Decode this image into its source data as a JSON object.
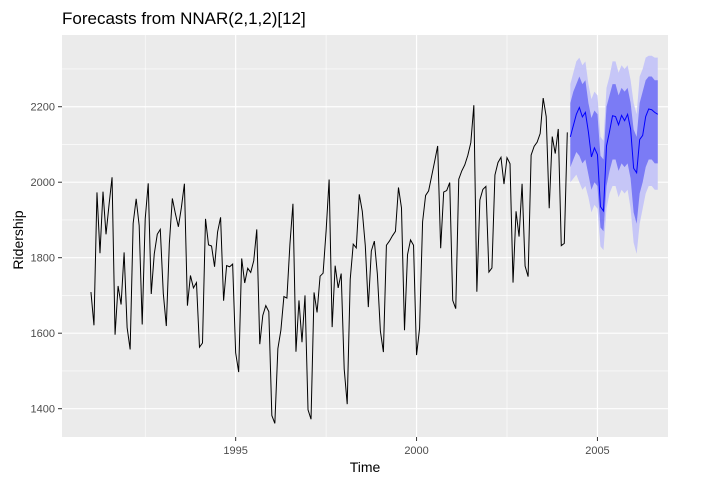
{
  "chart_data": {
    "type": "line",
    "title": "Forecasts from NNAR(2,1,2)[12]",
    "xlabel": "Time",
    "ylabel": "Ridership",
    "xlim": [
      1990.2,
      2006.95
    ],
    "ylim": [
      1325,
      2390
    ],
    "x_ticks": [
      1995,
      2000,
      2005
    ],
    "x_tick_labels": [
      "1995",
      "2000",
      "2005"
    ],
    "y_ticks": [
      1400,
      1600,
      1800,
      2000,
      2200
    ],
    "y_tick_labels": [
      "1400",
      "1600",
      "1800",
      "2000",
      "2200"
    ],
    "grid": true,
    "legend": "none",
    "colors": {
      "panel": "#ebebeb",
      "grid": "#ffffff",
      "history": "#000000",
      "forecast": "#0000ff",
      "pi80": "#7b7bf5",
      "pi95": "#c6c6f7"
    },
    "history": {
      "start": [
        1991,
        1
      ],
      "frequency": 12,
      "values": [
        1709,
        1621,
        1973,
        1812,
        1975,
        1862,
        1940,
        2013,
        1596,
        1725,
        1676,
        1814,
        1615,
        1557,
        1891,
        1956,
        1885,
        1623,
        1903,
        1997,
        1704,
        1810,
        1862,
        1875,
        1705,
        1619,
        1837,
        1957,
        1917,
        1882,
        1933,
        1996,
        1673,
        1753,
        1720,
        1734,
        1563,
        1574,
        1903,
        1834,
        1831,
        1776,
        1868,
        1907,
        1686,
        1779,
        1776,
        1783,
        1548,
        1497,
        1798,
        1733,
        1772,
        1761,
        1792,
        1875,
        1571,
        1647,
        1673,
        1657,
        1382,
        1361,
        1559,
        1608,
        1697,
        1693,
        1836,
        1943,
        1551,
        1687,
        1576,
        1700,
        1397,
        1372,
        1708,
        1655,
        1751,
        1759,
        1871,
        2007,
        1616,
        1779,
        1720,
        1758,
        1505,
        1412,
        1743,
        1836,
        1826,
        1968,
        1923,
        1832,
        1669,
        1818,
        1844,
        1757,
        1606,
        1550,
        1833,
        1844,
        1858,
        1870,
        1986,
        1932,
        1608,
        1808,
        1847,
        1833,
        1542,
        1613,
        1895,
        1965,
        1977,
        2016,
        2055,
        2096,
        1825,
        1974,
        1978,
        1999,
        1687,
        1665,
        2008,
        2030,
        2046,
        2071,
        2105,
        2204,
        1710,
        1953,
        1981,
        1989,
        1762,
        1773,
        2019,
        2052,
        2066,
        1995,
        2065,
        2049,
        1734,
        1923,
        1856,
        1996,
        1778,
        1750,
        2072,
        2095,
        2106,
        2129,
        2223,
        2174,
        1931,
        2121,
        2076,
        2141,
        1832,
        1838,
        2132
      ]
    },
    "forecast": {
      "start": [
        2004,
        4
      ],
      "frequency": 12,
      "mean": [
        2120,
        2150,
        2180,
        2198,
        2173,
        2185,
        2133,
        2067,
        2091,
        2073,
        1935,
        1924,
        2096,
        2134,
        2176,
        2174,
        2152,
        2177,
        2163,
        2180,
        2141,
        2037,
        2025,
        2113,
        2124,
        2174,
        2194,
        2192,
        2185,
        2180
      ],
      "lo80": [
        2040,
        2060,
        2080,
        2070,
        2050,
        2060,
        2020,
        1980,
        2000,
        1990,
        1880,
        1870,
        1990,
        2030,
        2060,
        2060,
        2030,
        2050,
        2040,
        2050,
        2010,
        1920,
        1890,
        1970,
        2000,
        2040,
        2060,
        2060,
        2050,
        2050
      ],
      "hi80": [
        2210,
        2240,
        2260,
        2280,
        2260,
        2270,
        2210,
        2170,
        2190,
        2180,
        2070,
        2060,
        2200,
        2230,
        2260,
        2260,
        2230,
        2250,
        2240,
        2250,
        2210,
        2140,
        2120,
        2210,
        2240,
        2270,
        2280,
        2280,
        2270,
        2270
      ],
      "lo95": [
        2000,
        2010,
        2020,
        2000,
        1980,
        1990,
        1960,
        1920,
        1940,
        1930,
        1830,
        1820,
        1930,
        1970,
        1990,
        1990,
        1960,
        1980,
        1970,
        1980,
        1930,
        1840,
        1810,
        1890,
        1930,
        1970,
        1990,
        1990,
        1980,
        1980
      ],
      "hi95": [
        2260,
        2290,
        2320,
        2330,
        2310,
        2320,
        2260,
        2220,
        2240,
        2230,
        2120,
        2110,
        2250,
        2280,
        2320,
        2320,
        2290,
        2310,
        2300,
        2310,
        2270,
        2210,
        2180,
        2280,
        2300,
        2330,
        2335,
        2335,
        2330,
        2330
      ]
    }
  }
}
